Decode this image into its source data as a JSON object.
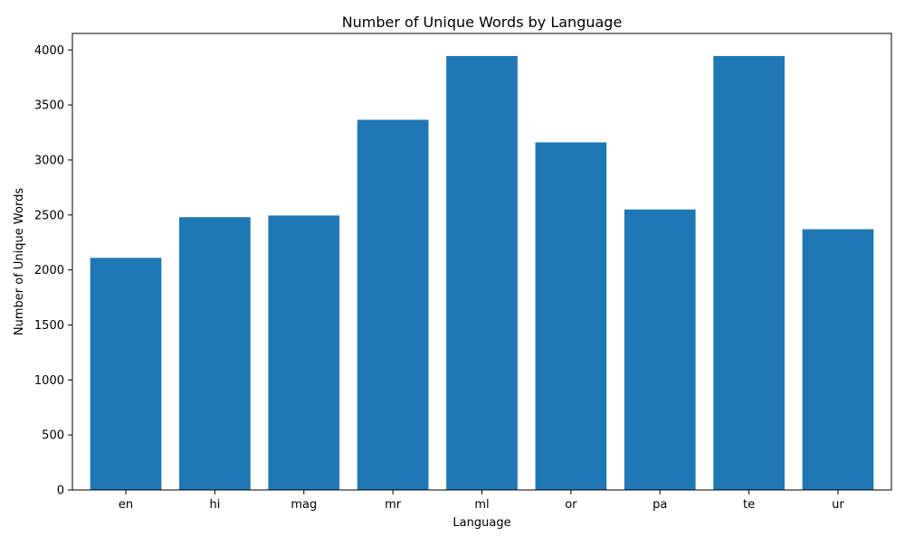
{
  "chart_data": {
    "type": "bar",
    "title": "Number of Unique Words by Language",
    "xlabel": "Language",
    "ylabel": "Number of Unique Words",
    "categories": [
      "en",
      "hi",
      "mag",
      "mr",
      "ml",
      "or",
      "pa",
      "te",
      "ur"
    ],
    "values": [
      2110,
      2480,
      2495,
      3365,
      3945,
      3160,
      2550,
      3945,
      2370
    ],
    "ylim": [
      0,
      4150
    ],
    "yticks": [
      0,
      500,
      1000,
      1500,
      2000,
      2500,
      3000,
      3500,
      4000
    ],
    "grid": false,
    "legend": "none",
    "bar_color": "#1f77b4"
  }
}
